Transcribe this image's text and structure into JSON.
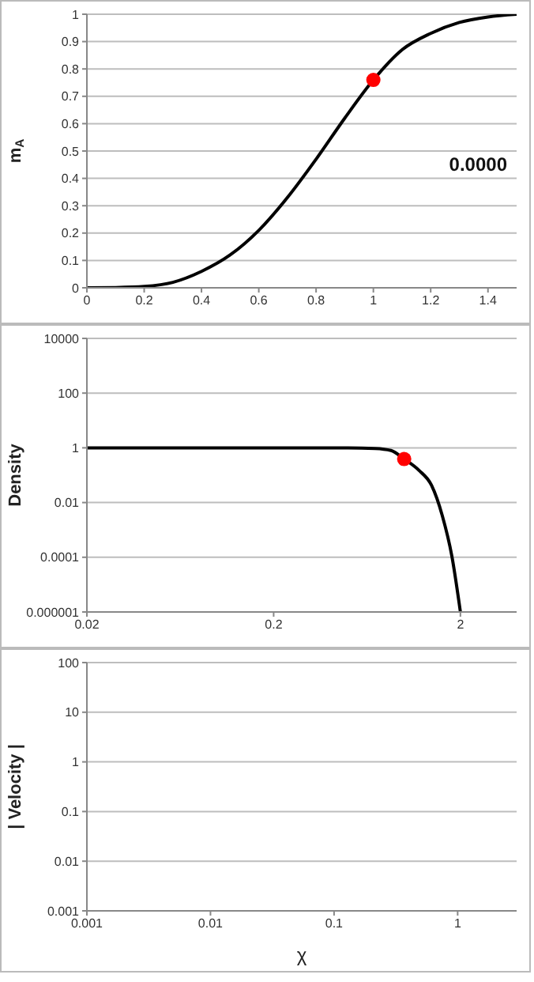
{
  "chart_data": [
    {
      "type": "line",
      "ylabel": "m$_{A}$",
      "xlim": [
        0,
        1.5
      ],
      "xticks": [
        0,
        0.2,
        0.4,
        0.6,
        0.8,
        1,
        1.2,
        1.4
      ],
      "ylim": [
        0,
        1
      ],
      "yticks": [
        0,
        0.1,
        0.2,
        0.3,
        0.4,
        0.5,
        0.6,
        0.7,
        0.8,
        0.9,
        1
      ],
      "grid": "y",
      "legend": false,
      "marker": "none",
      "annotations": [
        "0.0000"
      ],
      "series": [
        {
          "color": "#000000",
          "x": [
            0,
            0.1,
            0.2,
            0.3,
            0.4,
            0.5,
            0.6,
            0.7,
            0.8,
            0.9,
            1,
            1.1,
            1.2,
            1.3,
            1.4,
            1.5
          ],
          "values": [
            0,
            0.001,
            0.005,
            0.02,
            0.06,
            0.12,
            0.21,
            0.33,
            0.47,
            0.62,
            0.76,
            0.87,
            0.93,
            0.97,
            0.99,
            1
          ]
        },
        {
          "type": "scatter",
          "marker": "circle",
          "color": "#ff0000",
          "x": [
            1
          ],
          "values": [
            0.76
          ]
        }
      ]
    },
    {
      "type": "line",
      "ylabel": "Density",
      "log": "xy",
      "xlim": [
        0.02,
        4
      ],
      "xticks": [
        0.02,
        0.2,
        2
      ],
      "ylim": [
        1e-06,
        10000
      ],
      "yticks": [
        {
          "value": 1e-06,
          "label": "0.000001"
        },
        0.0001,
        0.01,
        1,
        100,
        10000
      ],
      "grid": "y",
      "legend": false,
      "marker": "none",
      "series": [
        {
          "color": "#000000",
          "x": [
            0.02,
            0.1,
            0.3,
            0.5,
            0.7,
            0.85,
            1,
            1.2,
            1.4,
            1.6,
            1.8,
            2
          ],
          "values": [
            1,
            1,
            1,
            1,
            0.95,
            0.8,
            0.39,
            0.15,
            0.043,
            0.0033,
            0.00011,
            1e-06
          ]
        },
        {
          "type": "scatter",
          "marker": "circle",
          "color": "#ff0000",
          "x": [
            1
          ],
          "values": [
            0.39
          ]
        }
      ]
    },
    {
      "type": "line",
      "ylabel": "| Velocity |",
      "xlabel": "χ",
      "log": "xy",
      "xlim": [
        0.001,
        3
      ],
      "xticks": [
        0.001,
        0.01,
        0.1,
        1
      ],
      "ylim": [
        0.001,
        100
      ],
      "yticks": [
        0.001,
        0.01,
        0.1,
        1,
        10,
        100
      ],
      "grid": "y",
      "legend": false
    }
  ]
}
